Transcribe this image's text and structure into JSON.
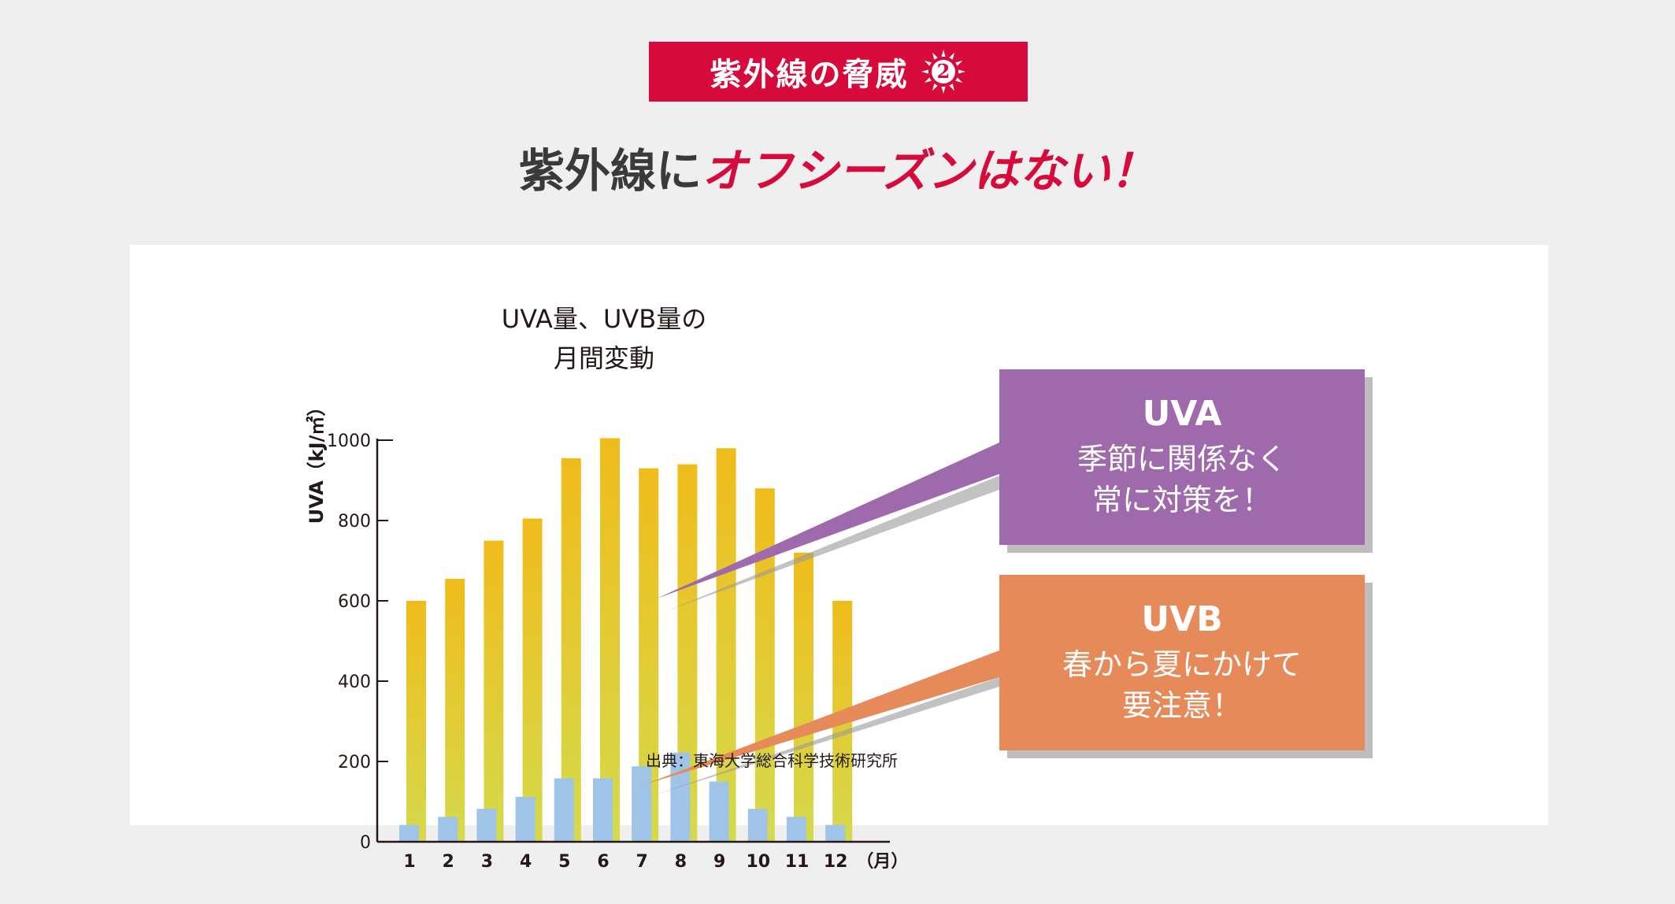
{
  "badge": {
    "text": "紫外線の脅威",
    "number": "2",
    "icon": "sun-icon",
    "color": "#d60a3b"
  },
  "headline": {
    "part1": "紫外線に",
    "part2": "オフシーズンはない！"
  },
  "callouts": [
    {
      "title": "UVA",
      "line1": "季節に関係なく",
      "line2": "常に対策を！",
      "color": "#9e6aab"
    },
    {
      "title": "UVB",
      "line1": "春から夏にかけて",
      "line2": "要注意！",
      "color": "#e68a5a"
    }
  ],
  "chart_data": {
    "type": "bar",
    "title_line1": "UVA量、UVB量の",
    "title_line2": "月間変動",
    "ylabel": "UVA（kJ/㎡）",
    "x_unit": "（月）",
    "ylim": [
      0,
      1000
    ],
    "yticks": [
      "0",
      "200",
      "400",
      "600",
      "800",
      "1000"
    ],
    "categories": [
      "1",
      "2",
      "3",
      "4",
      "5",
      "6",
      "7",
      "8",
      "9",
      "10",
      "11",
      "12"
    ],
    "series": [
      {
        "key": "UVA",
        "values": [
          600,
          655,
          750,
          805,
          955,
          1005,
          930,
          940,
          980,
          880,
          720,
          600
        ],
        "color": "#f0bc1c"
      },
      {
        "key": "UVB",
        "values": [
          42,
          62,
          82,
          112,
          158,
          158,
          188,
          222,
          150,
          82,
          62,
          42
        ],
        "color": "#9fc4e8"
      }
    ],
    "source": "出典：東海大学総合科学技術研究所",
    "grid": false
  }
}
